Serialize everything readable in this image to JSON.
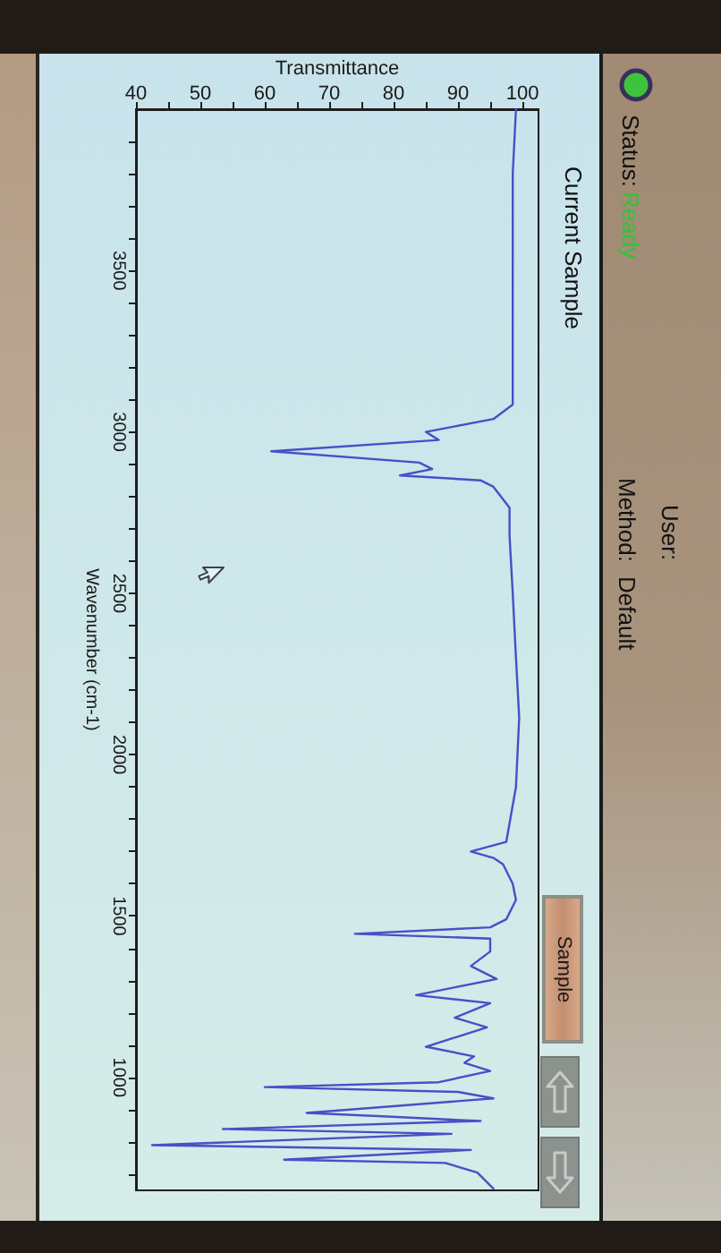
{
  "chart_data": {
    "type": "line",
    "title": "Current Sample",
    "xlabel": "Transmittance",
    "ylabel": "Wavenumber (cm-1)",
    "x": [
      99,
      98.5,
      98.5,
      98.5,
      98.5,
      98.5,
      95.5,
      85,
      87,
      61,
      84,
      86,
      81,
      93.5,
      95.5,
      98,
      98,
      98.5,
      99,
      99.5,
      99,
      97.5,
      92,
      95.5,
      97,
      98.5,
      99,
      97.5,
      95,
      74,
      95,
      95,
      92,
      96,
      83.5,
      95,
      89.5,
      94.5,
      85,
      92.5,
      91,
      95,
      87,
      60,
      90,
      95.5,
      66.5,
      77.5,
      93.5,
      53.5,
      89,
      42.5,
      92,
      63,
      88,
      93,
      95.5
    ],
    "values": [
      4000,
      3800,
      3600,
      3400,
      3200,
      3085,
      3040,
      3000,
      2975,
      2940,
      2905,
      2885,
      2865,
      2850,
      2830,
      2765,
      2680,
      2500,
      2300,
      2115,
      1900,
      1730,
      1700,
      1680,
      1660,
      1600,
      1550,
      1490,
      1465,
      1445,
      1430,
      1390,
      1345,
      1305,
      1255,
      1230,
      1185,
      1155,
      1095,
      1065,
      1045,
      1020,
      985,
      970,
      955,
      935,
      890,
      880,
      865,
      840,
      825,
      790,
      775,
      745,
      735,
      705,
      655
    ],
    "color": "#4650c8",
    "xlim": [
      40,
      102.5
    ],
    "xticks": [
      40,
      {
        "value": 45,
        "label": null
      },
      50,
      {
        "value": 55,
        "label": null
      },
      60,
      {
        "value": 65,
        "label": null
      },
      70,
      {
        "value": 75,
        "label": null
      },
      80,
      {
        "value": 85,
        "label": null
      },
      90,
      {
        "value": 95,
        "label": null
      },
      100
    ],
    "ylim": [
      650,
      4000
    ],
    "yticks": [
      {
        "value": 700,
        "label": null
      },
      {
        "value": 800,
        "label": null
      },
      {
        "value": 900,
        "label": null
      },
      1000,
      {
        "value": 1100,
        "label": null
      },
      {
        "value": 1200,
        "label": null
      },
      {
        "value": 1300,
        "label": null
      },
      {
        "value": 1400,
        "label": null
      },
      1500,
      {
        "value": 1600,
        "label": null
      },
      {
        "value": 1700,
        "label": null
      },
      {
        "value": 1800,
        "label": null
      },
      {
        "value": 1900,
        "label": null
      },
      2000,
      {
        "value": 2100,
        "label": null
      },
      {
        "value": 2200,
        "label": null
      },
      {
        "value": 2300,
        "label": null
      },
      {
        "value": 2400,
        "label": null
      },
      2500,
      {
        "value": 2600,
        "label": null
      },
      {
        "value": 2700,
        "label": null
      },
      {
        "value": 2800,
        "label": null
      },
      {
        "value": 2900,
        "label": null
      },
      3000,
      {
        "value": 3100,
        "label": null
      },
      {
        "value": 3200,
        "label": null
      },
      {
        "value": 3300,
        "label": null
      },
      {
        "value": 3400,
        "label": null
      },
      3500,
      {
        "value": 3600,
        "label": null
      },
      {
        "value": 3700,
        "label": null
      },
      {
        "value": 3800,
        "label": null
      },
      {
        "value": 3900,
        "label": null
      }
    ],
    "annotations": [
      "Status:",
      "Ready",
      "User:",
      "Method:",
      "Default",
      "Sample"
    ]
  }
}
